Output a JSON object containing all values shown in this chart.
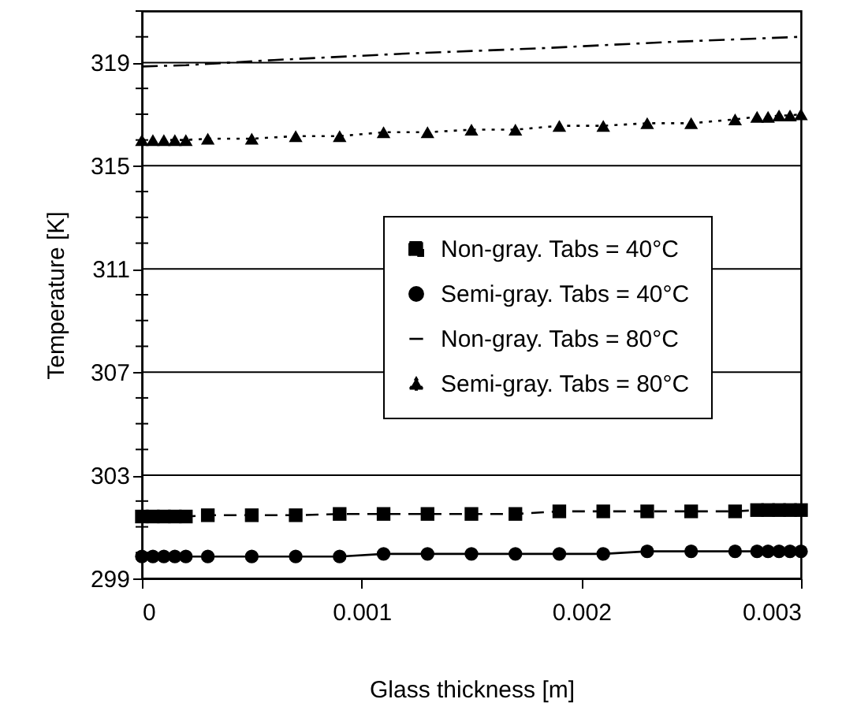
{
  "chart_data": {
    "type": "line",
    "xlabel": "Glass thickness [m]",
    "ylabel": "Temperature [K]",
    "x": [
      0,
      5e-05,
      0.0001,
      0.00015,
      0.0002,
      0.0003,
      0.0005,
      0.0007,
      0.0009,
      0.0011,
      0.0013,
      0.0015,
      0.0017,
      0.0019,
      0.0021,
      0.0023,
      0.0025,
      0.0027,
      0.0028,
      0.00285,
      0.0029,
      0.00295,
      0.003
    ],
    "series": [
      {
        "name": "Non-gray. Tabs = 40°C",
        "color": "#000000",
        "marker": "square",
        "line_style": "dashed",
        "values": [
          301.4,
          301.4,
          301.4,
          301.4,
          301.4,
          301.45,
          301.45,
          301.45,
          301.5,
          301.5,
          301.5,
          301.5,
          301.5,
          301.6,
          301.6,
          301.6,
          301.6,
          301.6,
          301.65,
          301.65,
          301.65,
          301.65,
          301.65
        ]
      },
      {
        "name": "Semi-gray. Tabs = 40°C",
        "color": "#000000",
        "marker": "circle",
        "line_style": "solid",
        "values": [
          299.85,
          299.85,
          299.85,
          299.85,
          299.85,
          299.85,
          299.85,
          299.85,
          299.85,
          299.95,
          299.95,
          299.95,
          299.95,
          299.95,
          299.95,
          300.05,
          300.05,
          300.05,
          300.05,
          300.05,
          300.05,
          300.05,
          300.05
        ]
      },
      {
        "name": "Non-gray. Tabs = 80°C",
        "color": "#000000",
        "marker": "none",
        "line_style": "dashdot",
        "x": [
          0,
          0.0002,
          0.0006,
          0.0012,
          0.0018,
          0.0024,
          0.003
        ],
        "values": [
          318.85,
          318.9,
          319.1,
          319.35,
          319.55,
          319.8,
          320.0
        ]
      },
      {
        "name": "Semi-gray. Tabs = 80°C",
        "color": "#000000",
        "marker": "triangle",
        "line_style": "dotted",
        "values": [
          316.0,
          316.0,
          316.0,
          316.0,
          316.0,
          316.05,
          316.05,
          316.15,
          316.15,
          316.3,
          316.3,
          316.4,
          316.4,
          316.55,
          316.55,
          316.65,
          316.65,
          316.8,
          316.9,
          316.9,
          316.95,
          316.95,
          317.0
        ]
      }
    ],
    "xlim": [
      0,
      0.003
    ],
    "xticks": [
      0,
      0.001,
      0.002,
      0.003
    ],
    "ylim": [
      299,
      321
    ],
    "yticks": [
      299,
      {
        "value": 300,
        "label": null
      },
      {
        "value": 301,
        "label": null
      },
      {
        "value": 302,
        "label": null
      },
      303,
      {
        "value": 304,
        "label": null
      },
      {
        "value": 305,
        "label": null
      },
      {
        "value": 306,
        "label": null
      },
      307,
      {
        "value": 308,
        "label": null
      },
      {
        "value": 309,
        "label": null
      },
      {
        "value": 310,
        "label": null
      },
      311,
      {
        "value": 312,
        "label": null
      },
      {
        "value": 313,
        "label": null
      },
      {
        "value": 314,
        "label": null
      },
      315,
      {
        "value": 316,
        "label": null
      },
      {
        "value": 317,
        "label": null
      },
      {
        "value": 318,
        "label": null
      },
      319,
      {
        "value": 320,
        "label": null
      },
      {
        "value": 321,
        "label": null
      }
    ],
    "grid": "y",
    "legend": "right"
  }
}
